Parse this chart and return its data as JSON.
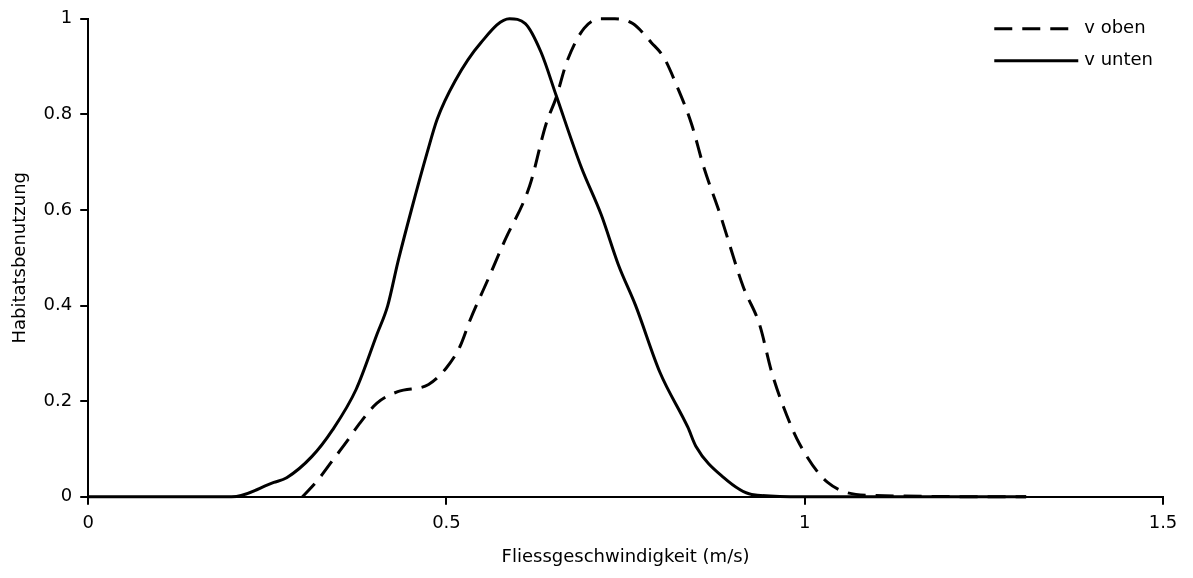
{
  "chart_data": {
    "type": "line",
    "xlabel": "Fliessgeschwindigkeit (m/s)",
    "ylabel": "Habitatsbenutzung",
    "xlim": [
      0,
      1.5
    ],
    "xticks": [
      0,
      0.5,
      1,
      1.5
    ],
    "ylim": [
      0,
      1
    ],
    "yticks": [
      0,
      0.2,
      0.4,
      0.6,
      0.8,
      1
    ],
    "grid": false,
    "legend": "top right",
    "marker": "none",
    "series": [
      {
        "name": "v oben",
        "color": "#000000",
        "line_style": "dashed",
        "x": [
          0.299,
          0.321,
          0.341,
          0.363,
          0.377,
          0.403,
          0.432,
          0.475,
          0.5,
          0.519,
          0.533,
          0.558,
          0.581,
          0.616,
          0.639,
          0.653,
          0.668,
          0.692,
          0.716,
          0.735,
          0.76,
          0.786,
          0.803,
          0.82,
          0.842,
          0.859,
          0.881,
          0.914,
          0.937,
          0.954,
          0.975,
          0.993,
          1.032,
          1.092,
          1.309
        ],
        "values": [
          0,
          0.036,
          0.076,
          0.12,
          0.15,
          0.196,
          0.22,
          0.235,
          0.27,
          0.315,
          0.37,
          0.455,
          0.535,
          0.65,
          0.78,
          0.835,
          0.91,
          0.98,
          1,
          1,
          0.99,
          0.95,
          0.92,
          0.865,
          0.78,
          0.69,
          0.595,
          0.44,
          0.36,
          0.26,
          0.17,
          0.11,
          0.03,
          0.003,
          0
        ]
      },
      {
        "name": "v unten",
        "color": "#000000",
        "line_style": "solid",
        "x": [
          0,
          0.2,
          0.259,
          0.277,
          0.312,
          0.341,
          0.374,
          0.403,
          0.418,
          0.432,
          0.451,
          0.473,
          0.487,
          0.512,
          0.548,
          0.588,
          0.61,
          0.632,
          0.653,
          0.688,
          0.716,
          0.74,
          0.764,
          0.798,
          0.837,
          0.848,
          0.887,
          0.926,
          0.996,
          1.309
        ],
        "values": [
          0,
          0,
          0.03,
          0.04,
          0.084,
          0.14,
          0.225,
          0.34,
          0.4,
          0.49,
          0.6,
          0.72,
          0.79,
          0.87,
          0.95,
          1,
          0.99,
          0.93,
          0.84,
          0.69,
          0.59,
          0.485,
          0.4,
          0.26,
          0.145,
          0.106,
          0.04,
          0.005,
          0,
          0
        ]
      }
    ]
  }
}
